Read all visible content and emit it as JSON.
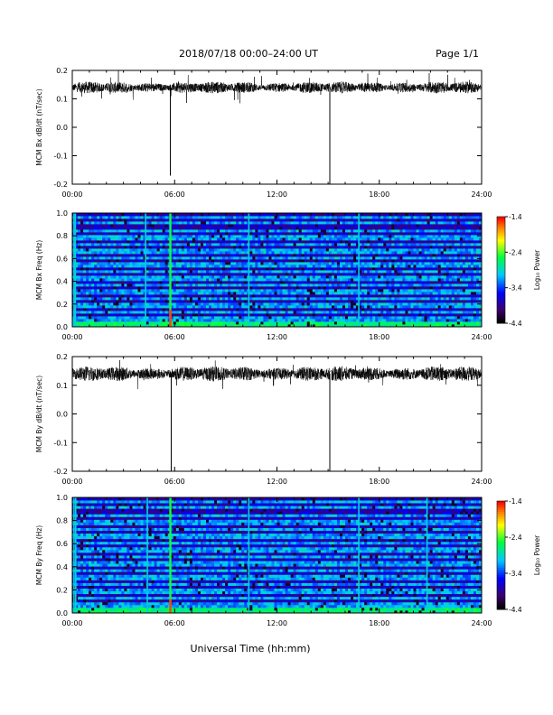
{
  "header": {
    "title": "2018/07/18  00:00–24:00 UT",
    "page": "Page 1/1"
  },
  "xlabel": "Universal Time (hh:mm)",
  "colorbar": {
    "label": "Log₁₀ Power",
    "ticks": [
      "-1.4",
      "-2.4",
      "-3.4",
      "-4.4"
    ]
  },
  "chart_data": [
    {
      "type": "line",
      "ylabel": "MCM Bx dB/dt (nT/sec)",
      "xlim": [
        0,
        24
      ],
      "ylim": [
        -0.2,
        0.2
      ],
      "xticks": [
        "00:00",
        "06:00",
        "12:00",
        "18:00",
        "24:00"
      ],
      "yticks": [
        "0.2",
        "0.1",
        "0.0",
        "-0.1",
        "-0.2"
      ],
      "baseline": 0.14,
      "noise": 0.011,
      "gap": [
        15.1,
        15.2
      ],
      "spikes": [
        {
          "x": 5.75,
          "y": -0.17
        },
        {
          "x": 15.1,
          "y": -0.2
        }
      ]
    },
    {
      "type": "heatmap",
      "ylabel": "MCM Bx Freq (Hz)",
      "xlim": [
        0,
        24
      ],
      "ylim": [
        0,
        1.0
      ],
      "zlim": [
        -4.4,
        -1.4
      ],
      "xticks": [
        "00:00",
        "06:00",
        "12:00",
        "18:00",
        "24:00"
      ],
      "yticks": [
        "1.0",
        "0.8",
        "0.6",
        "0.4",
        "0.2",
        "0.0"
      ],
      "vertical_streaks": [
        0.1,
        0.18,
        4.3,
        5.75,
        10.35,
        16.8
      ],
      "hot_event": {
        "x": 5.75,
        "f_max": 0.15
      }
    },
    {
      "type": "line",
      "ylabel": "MCM By dB/dt (nT/sec)",
      "xlim": [
        0,
        24
      ],
      "ylim": [
        -0.2,
        0.2
      ],
      "xticks": [
        "00:00",
        "06:00",
        "12:00",
        "18:00",
        "24:00"
      ],
      "yticks": [
        "0.2",
        "0.1",
        "0.0",
        "-0.1",
        "-0.2"
      ],
      "baseline": 0.14,
      "noise": 0.014,
      "gap": [
        15.1,
        15.2
      ],
      "spikes": [
        {
          "x": 5.8,
          "y": -0.2
        },
        {
          "x": 15.1,
          "y": -0.2
        }
      ]
    },
    {
      "type": "heatmap",
      "ylabel": "MCM By Freq (Hz)",
      "xlim": [
        0,
        24
      ],
      "ylim": [
        0,
        1.0
      ],
      "zlim": [
        -4.4,
        -1.4
      ],
      "xticks": [
        "00:00",
        "06:00",
        "12:00",
        "18:00",
        "24:00"
      ],
      "yticks": [
        "1.0",
        "0.8",
        "0.6",
        "0.4",
        "0.2",
        "0.0"
      ],
      "vertical_streaks": [
        0.1,
        0.2,
        4.4,
        5.75,
        10.35,
        16.8,
        20.8
      ],
      "hot_event": {
        "x": 5.75,
        "f_max": 0.12
      }
    }
  ]
}
